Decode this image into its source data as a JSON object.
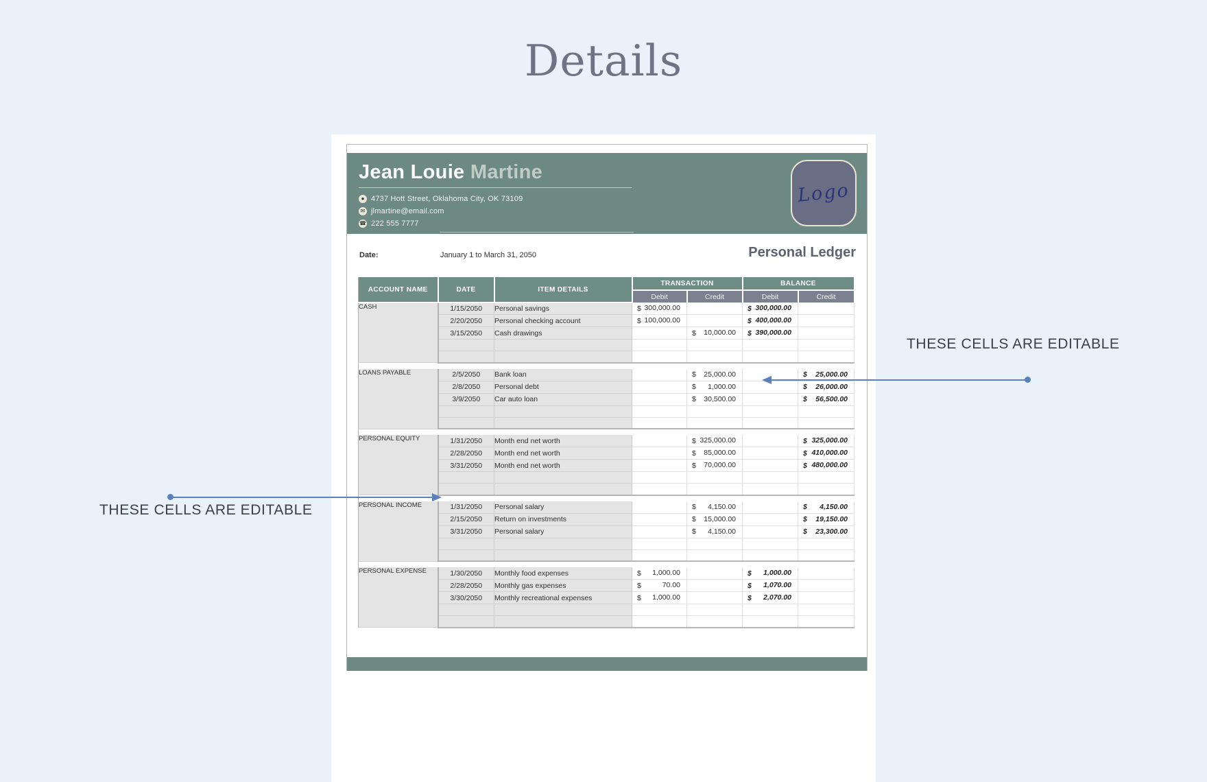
{
  "page": {
    "title": "Details"
  },
  "annotations": {
    "left_text": "THESE CELLS ARE EDITABLE",
    "right_text": "THESE CELLS ARE EDITABLE"
  },
  "profile": {
    "first_name": "Jean Louie",
    "last_name": "Martine",
    "address": "4737 Hott Street, Oklahoma City, OK 73109",
    "email": "jlmartine@email.com",
    "phone": "222 555 7777",
    "logo_text": "Logo",
    "icons": {
      "location": "●",
      "email": "✉",
      "phone": "☎"
    }
  },
  "ledger": {
    "date_label": "Date:",
    "date_value": "January 1 to March 31, 2050",
    "title": "Personal Ledger",
    "currency": "$",
    "columns": {
      "account_name": "ACCOUNT NAME",
      "date": "DATE",
      "item_details": "ITEM DETAILS",
      "transaction": "TRANSACTION",
      "balance": "BALANCE",
      "debit": "Debit",
      "credit": "Credit"
    },
    "empty_rows_per_section": 2,
    "sections": [
      {
        "account": "CASH",
        "rows": [
          {
            "date": "1/15/2050",
            "item": "Personal savings",
            "t_debit": "300,000.00",
            "t_credit": "",
            "b_debit": "300,000.00",
            "b_credit": ""
          },
          {
            "date": "2/20/2050",
            "item": "Personal checking account",
            "t_debit": "100,000.00",
            "t_credit": "",
            "b_debit": "400,000.00",
            "b_credit": ""
          },
          {
            "date": "3/15/2050",
            "item": "Cash drawings",
            "t_debit": "",
            "t_credit": "10,000.00",
            "b_debit": "390,000.00",
            "b_credit": ""
          }
        ]
      },
      {
        "account": "LOANS PAYABLE",
        "rows": [
          {
            "date": "2/5/2050",
            "item": "Bank loan",
            "t_debit": "",
            "t_credit": "25,000.00",
            "b_debit": "",
            "b_credit": "25,000.00"
          },
          {
            "date": "2/8/2050",
            "item": "Personal debt",
            "t_debit": "",
            "t_credit": "1,000.00",
            "b_debit": "",
            "b_credit": "26,000.00"
          },
          {
            "date": "3/9/2050",
            "item": "Car auto loan",
            "t_debit": "",
            "t_credit": "30,500.00",
            "b_debit": "",
            "b_credit": "56,500.00"
          }
        ]
      },
      {
        "account": "PERSONAL EQUITY",
        "rows": [
          {
            "date": "1/31/2050",
            "item": "Month end net worth",
            "t_debit": "",
            "t_credit": "325,000.00",
            "b_debit": "",
            "b_credit": "325,000.00"
          },
          {
            "date": "2/28/2050",
            "item": "Month end net worth",
            "t_debit": "",
            "t_credit": "85,000.00",
            "b_debit": "",
            "b_credit": "410,000.00"
          },
          {
            "date": "3/31/2050",
            "item": "Month end net worth",
            "t_debit": "",
            "t_credit": "70,000.00",
            "b_debit": "",
            "b_credit": "480,000.00"
          }
        ]
      },
      {
        "account": "PERSONAL INCOME",
        "rows": [
          {
            "date": "1/31/2050",
            "item": "Personal salary",
            "t_debit": "",
            "t_credit": "4,150.00",
            "b_debit": "",
            "b_credit": "4,150.00"
          },
          {
            "date": "2/15/2050",
            "item": "Return on investments",
            "t_debit": "",
            "t_credit": "15,000.00",
            "b_debit": "",
            "b_credit": "19,150.00"
          },
          {
            "date": "3/31/2050",
            "item": "Personal salary",
            "t_debit": "",
            "t_credit": "4,150.00",
            "b_debit": "",
            "b_credit": "23,300.00"
          }
        ]
      },
      {
        "account": "PERSONAL EXPENSE",
        "rows": [
          {
            "date": "1/30/2050",
            "item": "Monthly food expenses",
            "t_debit": "1,000.00",
            "t_credit": "",
            "b_debit": "1,000.00",
            "b_credit": ""
          },
          {
            "date": "2/28/2050",
            "item": "Monthly gas expenses",
            "t_debit": "70.00",
            "t_credit": "",
            "b_debit": "1,070.00",
            "b_credit": ""
          },
          {
            "date": "3/30/2050",
            "item": "Monthly recreational expenses",
            "t_debit": "1,000.00",
            "t_credit": "",
            "b_debit": "2,070.00",
            "b_credit": ""
          }
        ]
      }
    ]
  },
  "colors": {
    "background": "#e9f2fb",
    "header_green": "#6c8a83",
    "table_header_green": "#6e8d85",
    "table_subheader_gray": "#7b818e",
    "cell_gray": "#e4e4e4",
    "callout_blue": "#5b80bd",
    "logo_fill": "#6a6e84",
    "logo_border": "#e9e4d3",
    "logo_ink": "#2d3477"
  }
}
